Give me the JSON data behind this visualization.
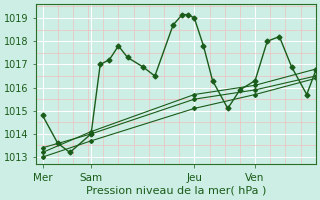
{
  "background_color": "#cceee4",
  "grid_color_major": "#ffffff",
  "grid_color_minor": "#f0c0c0",
  "line_color": "#1a5c1a",
  "title": "Pression niveau de la mer( hPa )",
  "ylim": [
    1012.7,
    1019.6
  ],
  "yticks": [
    1013,
    1014,
    1015,
    1016,
    1017,
    1018,
    1019
  ],
  "day_labels": [
    "Mer",
    "Sam",
    "Jeu",
    "Ven"
  ],
  "day_positions": [
    0,
    16,
    50,
    70
  ],
  "xlim": [
    -2,
    90
  ],
  "series1_x": [
    0,
    5,
    9,
    16,
    19,
    22,
    25,
    28,
    33,
    37,
    43,
    46,
    48,
    50,
    53,
    56,
    61,
    65,
    70,
    74,
    78,
    82,
    87,
    90
  ],
  "series1_y": [
    1014.8,
    1013.6,
    1013.2,
    1014.0,
    1017.0,
    1017.2,
    1017.8,
    1017.3,
    1016.9,
    1016.5,
    1018.7,
    1019.15,
    1019.15,
    1019.0,
    1017.8,
    1016.3,
    1015.1,
    1015.9,
    1016.3,
    1018.0,
    1018.2,
    1016.9,
    1015.7,
    1016.75
  ],
  "series2_x": [
    0,
    16,
    50,
    70,
    90
  ],
  "series2_y": [
    1013.4,
    1014.0,
    1015.5,
    1015.9,
    1016.5
  ],
  "series3_x": [
    0,
    16,
    50,
    70,
    90
  ],
  "series3_y": [
    1013.2,
    1014.1,
    1015.7,
    1016.1,
    1016.8
  ],
  "series4_x": [
    0,
    16,
    50,
    70,
    90
  ],
  "series4_y": [
    1013.0,
    1013.7,
    1015.1,
    1015.7,
    1016.4
  ],
  "xlabel_fontsize": 8,
  "ytick_fontsize": 7,
  "xtick_fontsize": 7.5
}
